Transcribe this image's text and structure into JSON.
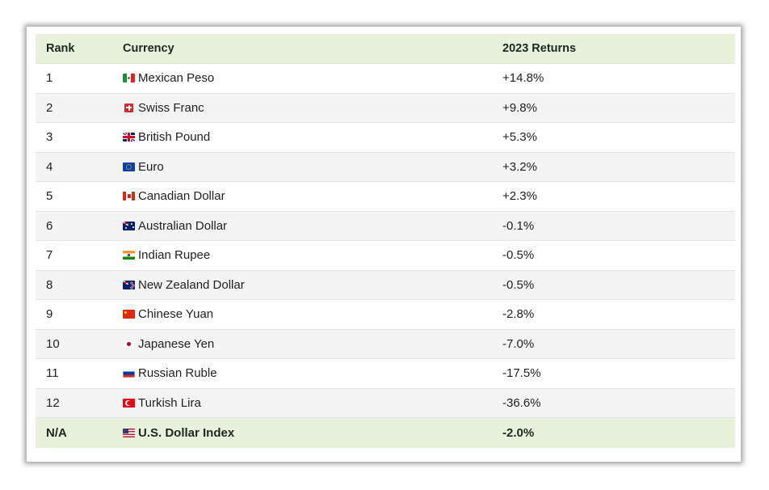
{
  "table": {
    "headers": {
      "rank": "Rank",
      "currency": "Currency",
      "returns": "2023 Returns"
    },
    "rows": [
      {
        "rank": "1",
        "currency": "Mexican Peso",
        "returns": "+14.8%",
        "flag_icon": "mexico-flag-icon"
      },
      {
        "rank": "2",
        "currency": "Swiss Franc",
        "returns": "+9.8%",
        "flag_icon": "switzerland-flag-icon"
      },
      {
        "rank": "3",
        "currency": "British Pound",
        "returns": "+5.3%",
        "flag_icon": "uk-flag-icon"
      },
      {
        "rank": "4",
        "currency": "Euro",
        "returns": "+3.2%",
        "flag_icon": "eu-flag-icon"
      },
      {
        "rank": "5",
        "currency": "Canadian Dollar",
        "returns": "+2.3%",
        "flag_icon": "canada-flag-icon"
      },
      {
        "rank": "6",
        "currency": "Australian Dollar",
        "returns": "-0.1%",
        "flag_icon": "australia-flag-icon"
      },
      {
        "rank": "7",
        "currency": "Indian Rupee",
        "returns": "-0.5%",
        "flag_icon": "india-flag-icon"
      },
      {
        "rank": "8",
        "currency": "New Zealand Dollar",
        "returns": "-0.5%",
        "flag_icon": "new-zealand-flag-icon"
      },
      {
        "rank": "9",
        "currency": "Chinese Yuan",
        "returns": "-2.8%",
        "flag_icon": "china-flag-icon"
      },
      {
        "rank": "10",
        "currency": "Japanese Yen",
        "returns": "-7.0%",
        "flag_icon": "japan-flag-icon"
      },
      {
        "rank": "11",
        "currency": "Russian Ruble",
        "returns": "-17.5%",
        "flag_icon": "russia-flag-icon"
      },
      {
        "rank": "12",
        "currency": "Turkish Lira",
        "returns": "-36.6%",
        "flag_icon": "turkey-flag-icon"
      }
    ],
    "footer": {
      "rank": "N/A",
      "currency": "U.S. Dollar Index",
      "returns": "-2.0%",
      "flag_icon": "usa-flag-icon"
    },
    "colors": {
      "header_bg": "#e8f1dc",
      "alt_row_bg": "#f4f4f4",
      "text": "#222222"
    }
  }
}
